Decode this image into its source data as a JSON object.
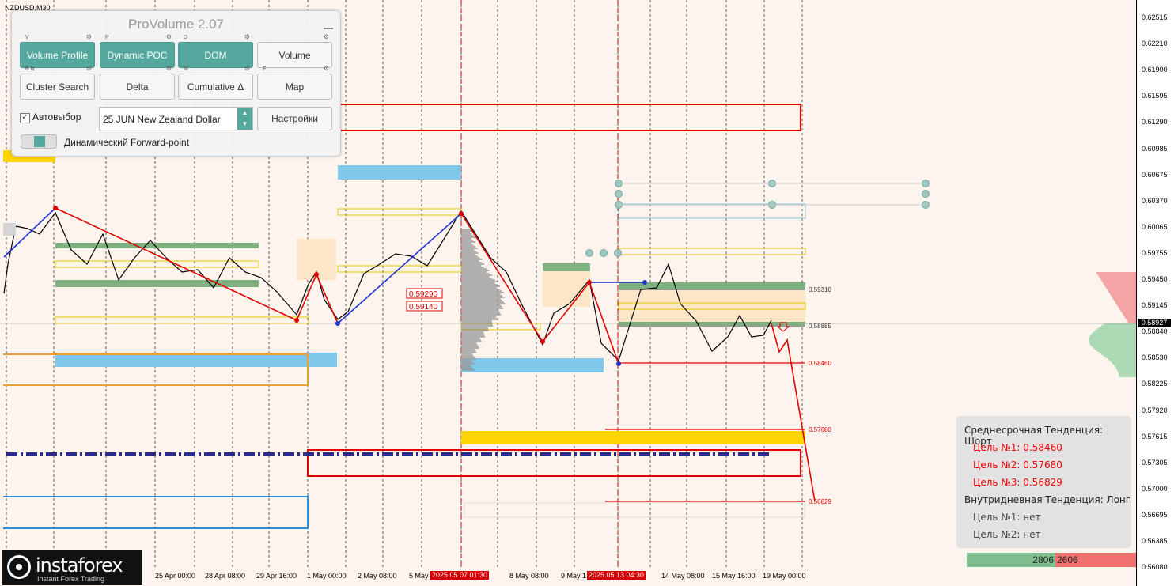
{
  "symbol": "NZDUSD,M30",
  "panel": {
    "title": "ProVolume 2.07",
    "buttons": [
      {
        "key": "V",
        "label": "Volume Profile",
        "active": true
      },
      {
        "key": "P",
        "label": "Dynamic POC",
        "active": true
      },
      {
        "key": "D",
        "label": "DOM",
        "active": true
      },
      {
        "key": "",
        "label": "Volume",
        "active": false
      },
      {
        "key": "B N",
        "label": "Cluster Search",
        "active": false
      },
      {
        "key": "",
        "label": "Delta",
        "active": false
      },
      {
        "key": "M",
        "label": "Cumulative Δ",
        "active": false
      },
      {
        "key": "F",
        "label": "Map",
        "active": false
      }
    ],
    "autoselect_label": "Автовыбор",
    "autoselect_checked": "✓",
    "instrument": "25 JUN New Zealand Dollar",
    "settings_label": "Настройки",
    "forward_label": "Динамический Forward-point"
  },
  "price_axis": [
    "0.62515",
    "0.62210",
    "0.61900",
    "0.61595",
    "0.61290",
    "0.60985",
    "0.60675",
    "0.60370",
    "0.60065",
    "0.59755",
    "0.59450",
    "0.59145",
    "0.58840",
    "0.58530",
    "0.58225",
    "0.57920",
    "0.57615",
    "0.57305",
    "0.57000",
    "0.56695",
    "0.56385",
    "0.56080"
  ],
  "current_price": "0.58927",
  "level_labels": {
    "l1": "0.59310",
    "l2": "0.58885",
    "l3": "0.58460",
    "l4": "0.57680",
    "l5": "0.56829",
    "b1": "0.59290",
    "b2": "0.59140"
  },
  "time_axis": [
    "25 Apr 00:00",
    "28 Apr 08:00",
    "29 Apr 16:00",
    "1 May 00:00",
    "2 May 08:00",
    "5 May",
    "8 May 08:00",
    "9 May 1",
    "14 May 08:00",
    "15 May 16:00",
    "19 May 00:00"
  ],
  "time_badges": [
    "2025.05.07 01:30",
    "2025.05.13 04:30"
  ],
  "trend": {
    "mid_title": "Среднесрочная Тенденция: Шорт",
    "mid_targets": [
      "Цель №1: 0.58460",
      "Цель №2: 0.57680",
      "Цель №3: 0.56829"
    ],
    "intra_title": "Внутридневная Тенденция: Лонг",
    "intra_targets": [
      "Цель №1: нет",
      "Цель №2: нет"
    ]
  },
  "volume_bar": {
    "buy": "2806",
    "sell": "2606"
  },
  "logo": {
    "name": "instaforex",
    "tagline": "Instant Forex Trading"
  },
  "colors": {
    "accent": "#55a89d",
    "zigzag_red": "#e00000",
    "zigzag_blue": "#1f33d6",
    "target_red": "#e00000"
  }
}
